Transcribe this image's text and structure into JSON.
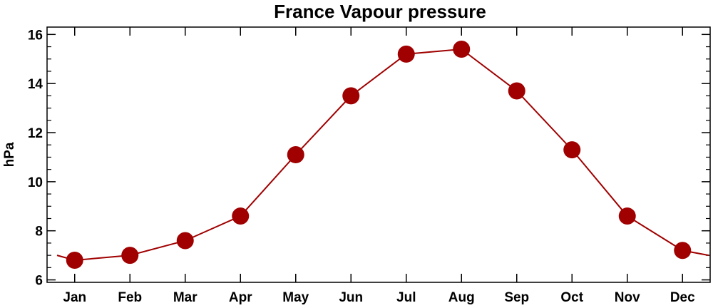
{
  "chart_data": {
    "type": "line",
    "title": "France Vapour pressure",
    "xlabel": "",
    "ylabel": "hPa",
    "categories": [
      "Jan",
      "Feb",
      "Mar",
      "Apr",
      "May",
      "Jun",
      "Jul",
      "Aug",
      "Sep",
      "Oct",
      "Nov",
      "Dec"
    ],
    "values": [
      6.8,
      7.0,
      7.6,
      8.6,
      11.1,
      13.5,
      15.2,
      15.4,
      13.7,
      11.3,
      8.6,
      7.2
    ],
    "ylim": [
      5.9,
      16.3
    ],
    "yticks": [
      6,
      8,
      10,
      12,
      14,
      16
    ],
    "wrap_edge_value": 7.0,
    "line_color": "#a00000",
    "marker_color": "#a00000",
    "grid": false,
    "legend": "none"
  }
}
